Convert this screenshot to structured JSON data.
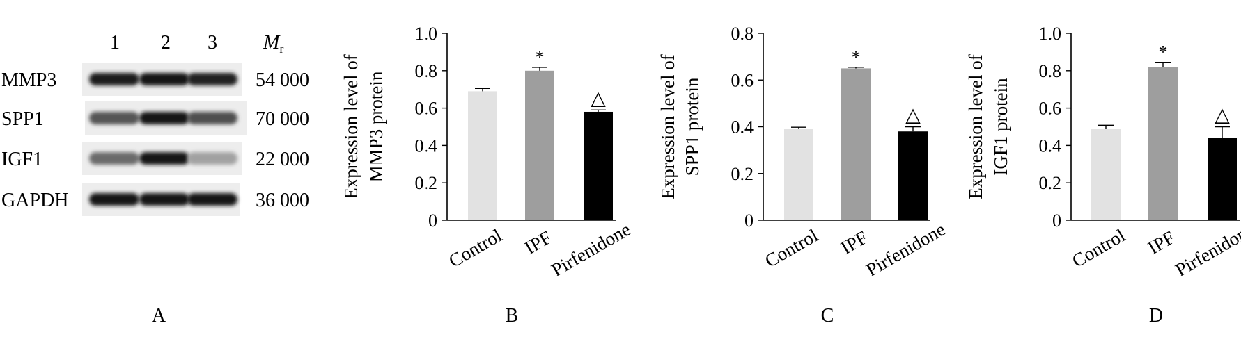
{
  "panel_labels": [
    "A",
    "B",
    "C",
    "D"
  ],
  "blot": {
    "lane_labels": [
      "1",
      "2",
      "3"
    ],
    "mr_label": "M",
    "mr_subscript": "r",
    "rows": [
      {
        "protein": "MMP3",
        "mr": "54 000",
        "intensities": [
          0.92,
          0.95,
          0.9
        ]
      },
      {
        "protein": "SPP1",
        "mr": "70 000",
        "intensities": [
          0.65,
          0.95,
          0.68
        ]
      },
      {
        "protein": "IGF1",
        "mr": "22 000",
        "intensities": [
          0.55,
          0.95,
          0.3
        ]
      },
      {
        "protein": "GAPDH",
        "mr": "36 000",
        "intensities": [
          0.95,
          0.95,
          0.95
        ]
      }
    ]
  },
  "chart_data": [
    {
      "type": "bar",
      "panel": "B",
      "categories": [
        "Control",
        "IPF",
        "Pirfenidone"
      ],
      "values": [
        0.69,
        0.8,
        0.58
      ],
      "errors": [
        0.015,
        0.018,
        0.01
      ],
      "annotations": [
        "",
        "*",
        "△"
      ],
      "colors": [
        "#e2e2e2",
        "#9e9e9e",
        "#000000"
      ],
      "ylabel": [
        "Expression level of",
        "MMP3 protein"
      ],
      "ylim": [
        0,
        1.0
      ],
      "yticks": [
        "0",
        "0.2",
        "0.4",
        "0.6",
        "0.8",
        "1.0"
      ]
    },
    {
      "type": "bar",
      "panel": "C",
      "categories": [
        "Control",
        "IPF",
        "Pirfenidone"
      ],
      "values": [
        0.39,
        0.65,
        0.38
      ],
      "errors": [
        0.008,
        0.005,
        0.02
      ],
      "annotations": [
        "",
        "*",
        "△"
      ],
      "colors": [
        "#e2e2e2",
        "#9e9e9e",
        "#000000"
      ],
      "ylabel": [
        "Expression level of",
        "SPP1 protein"
      ],
      "ylim": [
        0,
        0.8
      ],
      "yticks": [
        "0",
        "0.2",
        "0.4",
        "0.6",
        "0.8"
      ]
    },
    {
      "type": "bar",
      "panel": "D",
      "categories": [
        "Control",
        "IPF",
        "Pirfenidone"
      ],
      "values": [
        0.49,
        0.82,
        0.44
      ],
      "errors": [
        0.018,
        0.025,
        0.06
      ],
      "annotations": [
        "",
        "*",
        "△"
      ],
      "colors": [
        "#e2e2e2",
        "#9e9e9e",
        "#000000"
      ],
      "ylabel": [
        "Expression level of",
        "IGF1 protein"
      ],
      "ylim": [
        0,
        1.0
      ],
      "yticks": [
        "0",
        "0.2",
        "0.4",
        "0.6",
        "0.8",
        "1.0"
      ]
    }
  ]
}
